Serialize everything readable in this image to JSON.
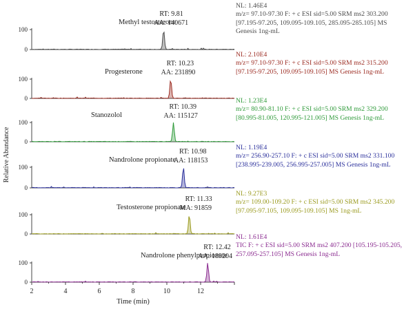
{
  "chart_data": {
    "type": "line",
    "xlabel": "Time (min)",
    "ylabel": "Relative Abundance",
    "xlim": [
      2,
      14
    ],
    "x_ticks": [
      2,
      4,
      6,
      8,
      10,
      12
    ],
    "ylim": [
      0,
      100
    ],
    "y_ticks": [
      0,
      100
    ],
    "grid": false,
    "panels": [
      {
        "compound": "Methyl testosterone",
        "rt_label": "RT: 9.81",
        "area_label": "AA: 140671",
        "peak_rt": 9.81,
        "nl": "NL: 1.46E4",
        "scan": "m/z= 97.10-97.30 F: + c ESI sid=5.00 SRM ms2 303.200 [97.195-97.205, 109.095-109.105, 285.095-285.105] MS Genesis 1ng-mL",
        "color": "#4a4a4a"
      },
      {
        "compound": "Progesterone",
        "rt_label": "RT: 10.23",
        "area_label": "AA: 231890",
        "peak_rt": 10.23,
        "nl": "NL: 2.10E4",
        "scan": "m/z= 97.10-97.30 F: + c ESI sid=5.00 SRM ms2 315.200 [97.195-97.205, 109.095-109.105] MS Genesis 1ng-mL",
        "color": "#9b2a20"
      },
      {
        "compound": "Stanozolol",
        "rt_label": "RT: 10.39",
        "area_label": "AA: 115127",
        "peak_rt": 10.39,
        "nl": "NL: 1.23E4",
        "scan": "m/z= 80.90-81.10 F: + c ESI sid=5.00 SRM ms2 329.200 [80.995-81.005, 120.995-121.005] MS Genesis 1ng-mL",
        "color": "#2f9a3a"
      },
      {
        "compound": "Nandrolone propionate",
        "rt_label": "RT: 10.98",
        "area_label": "AA: 118153",
        "peak_rt": 10.98,
        "nl": "NL: 1.19E4",
        "scan": "m/z= 256.90-257.10 F: + c ESI sid=5.00 SRM ms2 331.100 [238.995-239.005, 256.995-257.005] MS Genesis 1ng-mL",
        "color": "#2a2f9b"
      },
      {
        "compound": "Testosterone propionate",
        "rt_label": "RT: 11.33",
        "area_label": "MA: 91859",
        "peak_rt": 11.33,
        "nl": "NL: 9.27E3",
        "scan": "m/z= 109.00-109.20 F: + c ESI sid=5.00 SRM ms2 345.200 [97.095-97.105, 109.095-109.105] MS 1ng-mL",
        "color": "#9a9a1e"
      },
      {
        "compound": "Nandrolone phenylpropionate",
        "rt_label": "RT: 12.42",
        "area_label": "AA: 189204",
        "peak_rt": 12.42,
        "nl": "NL: 1.61E4",
        "scan": "TIC F: + c ESI sid=5.00 SRM ms2 407.200 [105.195-105.205, 257.095-257.105] MS Genesis 1ng-mL",
        "color": "#8a2a8f"
      }
    ]
  }
}
